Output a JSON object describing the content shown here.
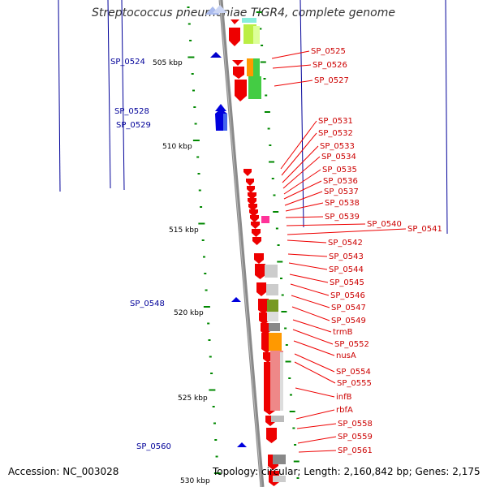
{
  "title": "Streptococcus pneumoniae TIGR4, complete genome",
  "footer": {
    "accession": "Accession: NC_003028",
    "topology": "Topology: circular; Length: 2,160,842 bp; Genes: 2,175"
  },
  "scale_labels": [
    "505 kbp",
    "510 kbp",
    "515 kbp",
    "520 kbp",
    "525 kbp",
    "530 kbp"
  ],
  "genes_minus_strand": [
    {
      "label": "SP_0524",
      "color": "#0000cc"
    },
    {
      "label": "SP_0528",
      "color": "#0000cc"
    },
    {
      "label": "SP_0529",
      "color": "#0000cc"
    },
    {
      "label": "SP_0548",
      "color": "#0000cc"
    },
    {
      "label": "SP_0560",
      "color": "#0000cc"
    }
  ],
  "genes_plus_strand": [
    {
      "label": "SP_0525"
    },
    {
      "label": "SP_0526"
    },
    {
      "label": "SP_0527"
    },
    {
      "label": "SP_0531"
    },
    {
      "label": "SP_0532"
    },
    {
      "label": "SP_0533"
    },
    {
      "label": "SP_0534"
    },
    {
      "label": "SP_0535"
    },
    {
      "label": "SP_0536"
    },
    {
      "label": "SP_0537"
    },
    {
      "label": "SP_0538"
    },
    {
      "label": "SP_0539"
    },
    {
      "label": "SP_0540"
    },
    {
      "label": "SP_0541"
    },
    {
      "label": "SP_0542"
    },
    {
      "label": "SP_0543"
    },
    {
      "label": "SP_0544"
    },
    {
      "label": "SP_0545"
    },
    {
      "label": "SP_0546"
    },
    {
      "label": "SP_0547"
    },
    {
      "label": "SP_0549"
    },
    {
      "label": "trmB"
    },
    {
      "label": "SP_0552"
    },
    {
      "label": "nusA"
    },
    {
      "label": "SP_0554"
    },
    {
      "label": "SP_0555"
    },
    {
      "label": "infB"
    },
    {
      "label": "rbfA"
    },
    {
      "label": "SP_0558"
    },
    {
      "label": "SP_0559"
    },
    {
      "label": "SP_0561"
    }
  ],
  "colors": {
    "plus_gene": "#ee0000",
    "minus_gene": "#0000dd",
    "backbone": "#888888",
    "ticks": "#008800",
    "label_red": "#cc0000",
    "label_blue": "#000099"
  }
}
